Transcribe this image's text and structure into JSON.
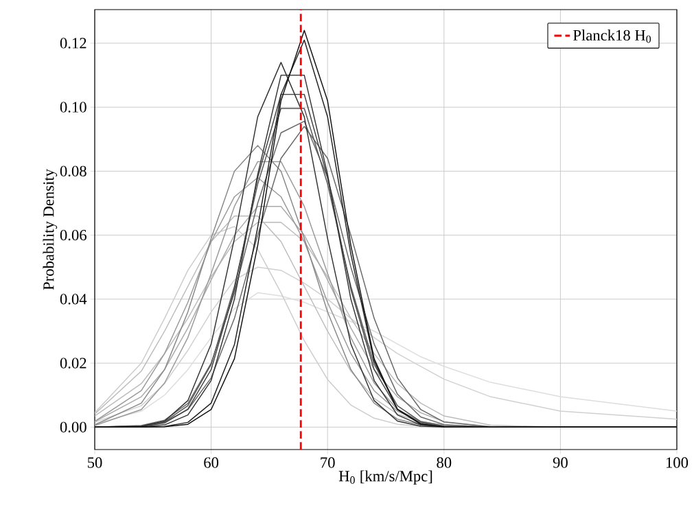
{
  "chart_data": {
    "type": "line",
    "xlabel": "H$_{0}$ [km/s/Mpc]",
    "ylabel": "Probability Density",
    "x": [
      50,
      54,
      56,
      58,
      60,
      62,
      64,
      66,
      68,
      70,
      72,
      74,
      76,
      78,
      80,
      84,
      90,
      100
    ],
    "series": [
      {
        "color": "#dddddd",
        "values": [
          0.001,
          0.005,
          0.01,
          0.018,
          0.028,
          0.037,
          0.042,
          0.041,
          0.039,
          0.036,
          0.033,
          0.03,
          0.026,
          0.022,
          0.019,
          0.014,
          0.0095,
          0.005
        ]
      },
      {
        "color": "#d0d0d0",
        "values": [
          0.0015,
          0.0067,
          0.0136,
          0.024,
          0.036,
          0.046,
          0.05,
          0.049,
          0.045,
          0.04,
          0.034,
          0.028,
          0.023,
          0.019,
          0.015,
          0.0095,
          0.005,
          0.0025
        ]
      },
      {
        "color": "#cccccc",
        "values": [
          0.0045,
          0.02,
          0.034,
          0.049,
          0.06,
          0.0627,
          0.0556,
          0.042,
          0.027,
          0.0149,
          0.0069,
          0.0028,
          0.0009,
          0.0003,
          0.0001,
          0,
          0,
          0
        ]
      },
      {
        "color": "#bbbbbb",
        "values": [
          0.0035,
          0.0136,
          0.023,
          0.034,
          0.047,
          0.058,
          0.064,
          0.064,
          0.058,
          0.047,
          0.034,
          0.023,
          0.0136,
          0.0075,
          0.0035,
          0.0006,
          0,
          0
        ]
      },
      {
        "color": "#bbbbbb",
        "values": [
          0.0041,
          0.0175,
          0.03,
          0.044,
          0.058,
          0.066,
          0.066,
          0.058,
          0.044,
          0.03,
          0.0175,
          0.009,
          0.0041,
          0.0016,
          0.0006,
          0.0001,
          0,
          0
        ]
      },
      {
        "color": "#aaaaaa",
        "values": [
          0.0017,
          0.0095,
          0.018,
          0.031,
          0.046,
          0.06,
          0.069,
          0.069,
          0.06,
          0.046,
          0.031,
          0.018,
          0.0095,
          0.0045,
          0.0017,
          0.0002,
          0,
          0
        ]
      },
      {
        "color": "#999999",
        "values": [
          0.0018,
          0.0114,
          0.023,
          0.039,
          0.058,
          0.072,
          0.078,
          0.072,
          0.058,
          0.039,
          0.023,
          0.0114,
          0.005,
          0.0018,
          0.0006,
          0.0001,
          0,
          0
        ]
      },
      {
        "color": "#999999",
        "values": [
          0.0005,
          0.0055,
          0.0138,
          0.028,
          0.048,
          0.069,
          0.083,
          0.083,
          0.069,
          0.048,
          0.028,
          0.0138,
          0.0055,
          0.0018,
          0.0005,
          0,
          0,
          0
        ]
      },
      {
        "color": "#888888",
        "values": [
          0.0007,
          0.0075,
          0.018,
          0.036,
          0.059,
          0.08,
          0.088,
          0.08,
          0.059,
          0.036,
          0.018,
          0.0075,
          0.0025,
          0.0007,
          0.0001,
          0,
          0,
          0
        ]
      },
      {
        "color": "#666666",
        "values": [
          0,
          0.0004,
          0.0016,
          0.0055,
          0.0154,
          0.034,
          0.06,
          0.084,
          0.094,
          0.084,
          0.06,
          0.034,
          0.0154,
          0.0055,
          0.0016,
          0.0001,
          0,
          0
        ]
      },
      {
        "color": "#666666",
        "values": [
          0,
          0.0005,
          0.0022,
          0.0074,
          0.02,
          0.042,
          0.07,
          0.092,
          0.0956,
          0.078,
          0.05,
          0.026,
          0.0103,
          0.0032,
          0.0008,
          0,
          0,
          0
        ]
      },
      {
        "color": "#555555",
        "values": [
          0,
          0.0003,
          0.0017,
          0.0067,
          0.0196,
          0.044,
          0.076,
          0.0996,
          0.0996,
          0.076,
          0.044,
          0.0196,
          0.0067,
          0.0017,
          0.0003,
          0,
          0,
          0
        ]
      },
      {
        "color": "#444444",
        "values": [
          0,
          0.0002,
          0.0013,
          0.0056,
          0.018,
          0.043,
          0.078,
          0.104,
          0.104,
          0.078,
          0.043,
          0.018,
          0.0056,
          0.0013,
          0.0002,
          0,
          0,
          0
        ]
      },
      {
        "color": "#333333",
        "values": [
          0,
          0.0001,
          0.0007,
          0.0038,
          0.0146,
          0.04,
          0.079,
          0.11,
          0.11,
          0.079,
          0.04,
          0.0146,
          0.0038,
          0.0007,
          0.0001,
          0,
          0,
          0
        ]
      },
      {
        "color": "#333333",
        "values": [
          0,
          0.0003,
          0.0019,
          0.0083,
          0.026,
          0.059,
          0.097,
          0.114,
          0.097,
          0.059,
          0.026,
          0.0083,
          0.0019,
          0.0003,
          0,
          0,
          0,
          0
        ]
      },
      {
        "color": "#222222",
        "values": [
          0,
          0,
          0.0002,
          0.0015,
          0.0075,
          0.0258,
          0.0625,
          0.104,
          0.121,
          0.097,
          0.054,
          0.0206,
          0.0056,
          0.001,
          0.0001,
          0,
          0,
          0
        ]
      },
      {
        "color": "#111111",
        "values": [
          0,
          0,
          0.0001,
          0.0009,
          0.0055,
          0.0214,
          0.0568,
          0.102,
          0.124,
          0.102,
          0.0568,
          0.0214,
          0.0055,
          0.0009,
          0.0001,
          0,
          0,
          0
        ]
      },
      {
        "name": "Planck18 H$_{0}$",
        "color": "#ff0000",
        "line_style": "dashed",
        "x": [
          67.7,
          67.7
        ],
        "values": [
          -0.007,
          0.1305
        ]
      }
    ],
    "xlim": [
      50,
      100
    ],
    "ylim": [
      -0.007,
      0.1305
    ],
    "xticks": [
      50,
      60,
      70,
      80,
      90,
      100
    ],
    "yticks": [
      {
        "value": 0,
        "label": "0.00"
      },
      {
        "value": 0.02,
        "label": "0.02"
      },
      {
        "value": 0.04,
        "label": "0.04"
      },
      {
        "value": 0.06,
        "label": "0.06"
      },
      {
        "value": 0.08,
        "label": "0.08"
      },
      {
        "value": 0.1,
        "label": "0.10"
      },
      {
        "value": 0.12,
        "label": "0.12"
      }
    ],
    "grid": true,
    "legend": "top right"
  }
}
